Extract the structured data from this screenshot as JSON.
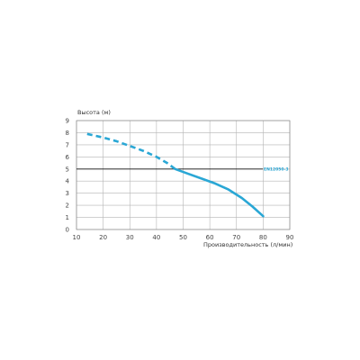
{
  "chart_data": {
    "type": "line",
    "title": "",
    "ylabel": "Высота (м)",
    "xlabel": "Производительность (л/мин)",
    "xlim": [
      10,
      90
    ],
    "ylim": [
      0,
      9
    ],
    "xticks": [
      10,
      20,
      30,
      40,
      50,
      60,
      70,
      80,
      90
    ],
    "yticks": [
      0,
      1,
      2,
      3,
      4,
      5,
      6,
      7,
      8,
      9
    ],
    "grid": true,
    "line_color": "#2aa7d5",
    "series": [
      {
        "name": "EN12050-3",
        "x": [
          14,
          20,
          25,
          30,
          35,
          40,
          44,
          47,
          52,
          57,
          62,
          67,
          72,
          76,
          80
        ],
        "y": [
          7.9,
          7.6,
          7.3,
          6.9,
          6.5,
          6.0,
          5.5,
          5.0,
          4.6,
          4.2,
          3.8,
          3.3,
          2.6,
          1.9,
          1.1
        ],
        "dashed_until_x": 47
      }
    ],
    "reference_lines": [
      {
        "type": "horizontal",
        "y": 5,
        "color": "#111111"
      }
    ]
  }
}
